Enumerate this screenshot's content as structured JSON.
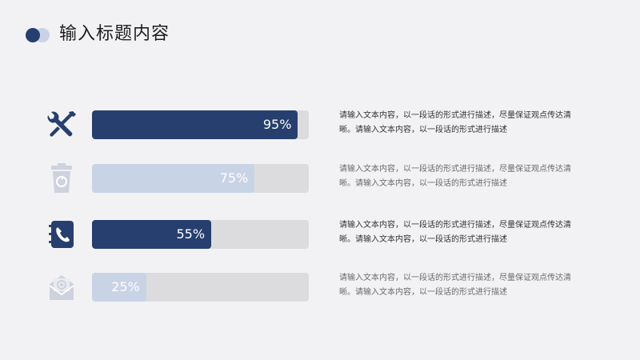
{
  "header": {
    "title": "输入标题内容"
  },
  "colors": {
    "accent": "#263f6e",
    "accent_light": "#c9d3e6",
    "track": "#dcdcde",
    "icon_dim": "#cdd2de"
  },
  "rows": [
    {
      "icon": "tools-icon",
      "percent_label": "95%",
      "percent": 95,
      "active": true,
      "description": "请输入文本内容，以一段话的形式进行描述，尽量保证观点传达清晰。请输入文本内容，以一段话的形式进行描述"
    },
    {
      "icon": "recycle-bin-icon",
      "percent_label": "75%",
      "percent": 75,
      "active": false,
      "description": "请输入文本内容，以一段话的形式进行描述，尽量保证观点传达清晰。请输入文本内容，以一段话的形式进行描述"
    },
    {
      "icon": "phone-book-icon",
      "percent_label": "55%",
      "percent": 55,
      "active": true,
      "description": "请输入文本内容，以一段话的形式进行描述，尽量保证观点传达清晰。请输入文本内容，以一段话的形式进行描述"
    },
    {
      "icon": "email-icon",
      "percent_label": "25%",
      "percent": 25,
      "active": false,
      "description": "请输入文本内容，以一段话的形式进行描述，尽量保证观点传达清晰。请输入文本内容，以一段话的形式进行描述"
    }
  ]
}
